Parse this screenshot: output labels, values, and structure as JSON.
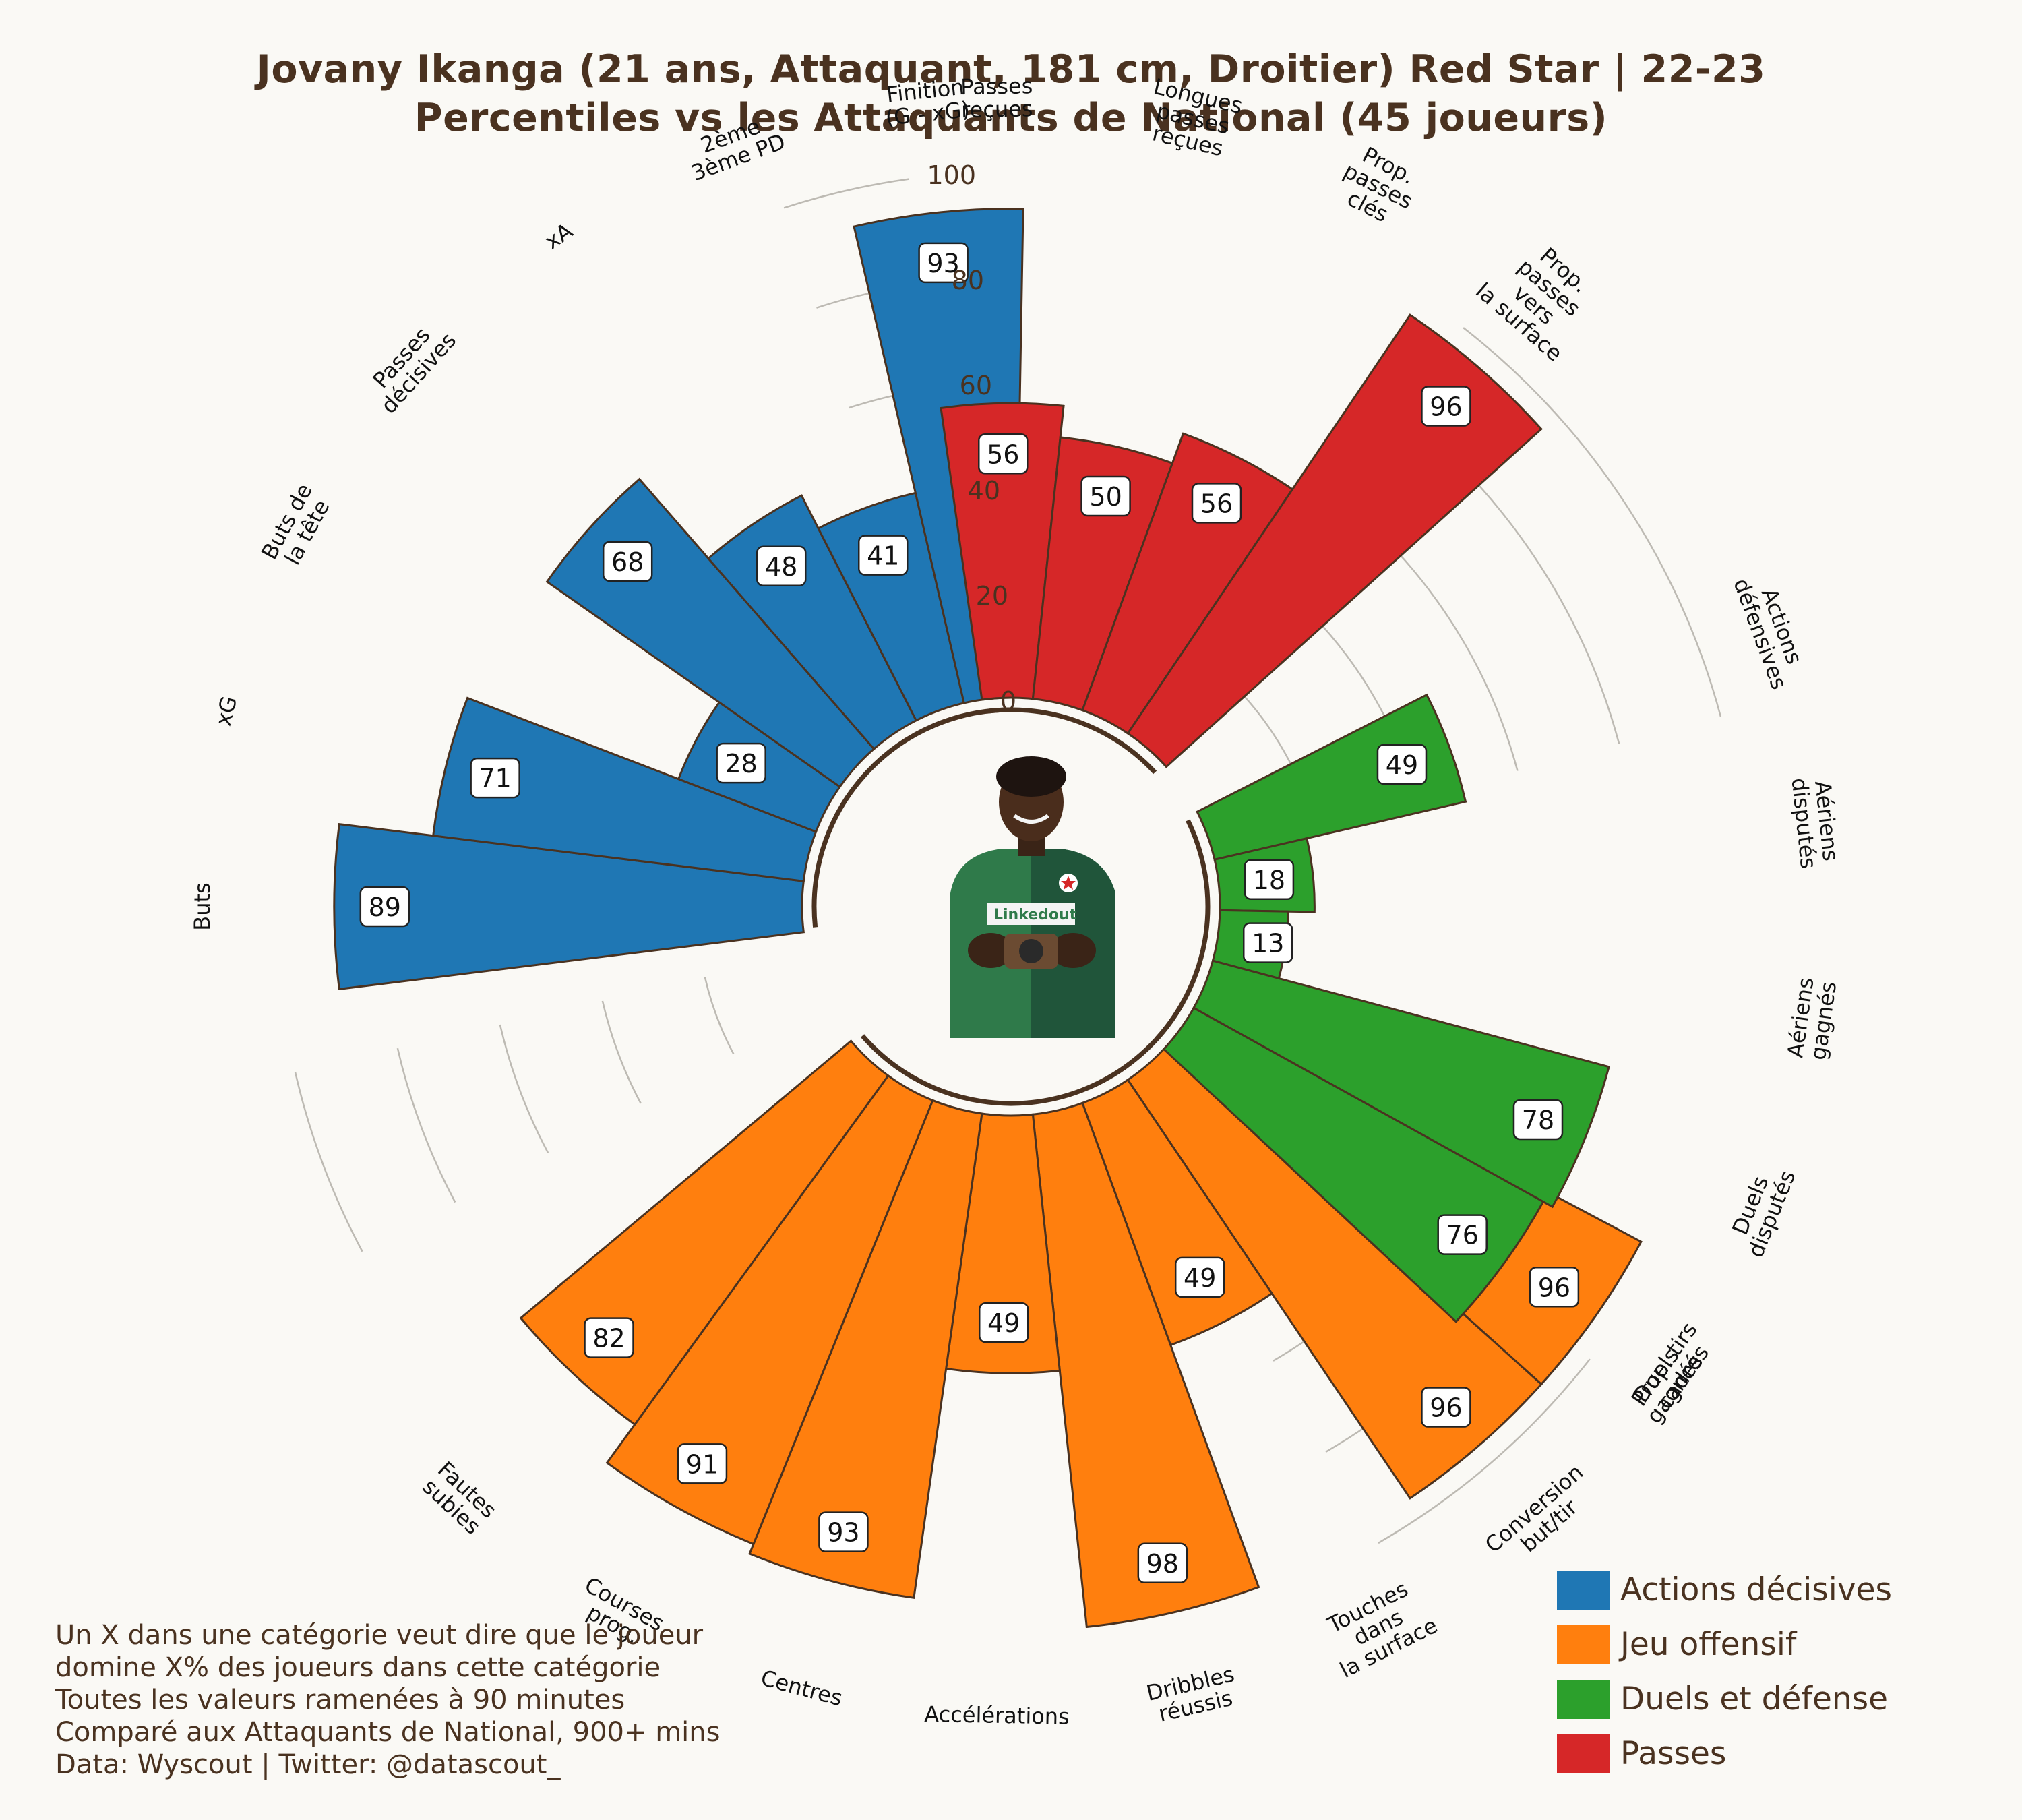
{
  "title_line1": "Jovany Ikanga (21 ans, Attaquant, 181 cm, Droitier) Red Star | 22-23",
  "title_line2": "Percentiles vs les Attaquants de National (45 joueurs)",
  "footnote": [
    "Un X dans une catégorie veut dire que le joueur",
    "domine X% des joueurs dans cette catégorie",
    "Toutes les valeurs ramenées à 90 minutes",
    "Comparé aux Attaquants de National, 900+ mins",
    "Data: Wyscout | Twitter: @datascout_"
  ],
  "legend": [
    {
      "label": "Actions décisives",
      "color": "#1f77b4"
    },
    {
      "label": "Jeu offensif",
      "color": "#ff7f0e"
    },
    {
      "label": "Duels et défense",
      "color": "#2ca02c"
    },
    {
      "label": "Passes",
      "color": "#d62728"
    }
  ],
  "photo": {
    "name": "player-photo",
    "jersey_text": "Linkedout"
  },
  "chart_data": {
    "type": "polar-bar",
    "r_ticks": [
      "0",
      "20",
      "40",
      "60",
      "80",
      "100"
    ],
    "rlim": [
      0,
      100
    ],
    "categories": [
      {
        "name": "Actions décisives",
        "color": "#1f77b4",
        "items": [
          {
            "label": [
              "Buts"
            ],
            "value": 89
          },
          {
            "label": [
              "xG"
            ],
            "value": 71
          },
          {
            "label": [
              "Buts de",
              "la tête"
            ],
            "value": 28
          },
          {
            "label": [
              "Passes",
              "décisives"
            ],
            "value": 68
          },
          {
            "label": [
              "xA"
            ],
            "value": 48
          },
          {
            "label": [
              "2ème",
              "3ème PD"
            ],
            "value": 41
          },
          {
            "label": [
              "Finition",
              "(G - xG)"
            ],
            "value": 93
          }
        ]
      },
      {
        "name": "Jeu offensif",
        "color": "#ff7f0e",
        "items": [
          {
            "label": [
              "Prop. tirs",
              "cadrés"
            ],
            "value": 96
          },
          {
            "label": [
              "Conversion",
              "but/tir"
            ],
            "value": 96
          },
          {
            "label": [
              "Touches",
              "dans",
              "la surface"
            ],
            "value": 49
          },
          {
            "label": [
              "Dribbles",
              "réussis"
            ],
            "value": 98
          },
          {
            "label": [
              "Accélérations"
            ],
            "value": 49
          },
          {
            "label": [
              "Centres"
            ],
            "value": 93
          },
          {
            "label": [
              "Courses",
              "prog."
            ],
            "value": 91
          },
          {
            "label": [
              "Fautes",
              "subies"
            ],
            "value": 82
          }
        ]
      },
      {
        "name": "Duels et défense",
        "color": "#2ca02c",
        "items": [
          {
            "label": [
              "Actions",
              "défensives"
            ],
            "value": 49
          },
          {
            "label": [
              "Aériens",
              "disputés"
            ],
            "value": 18
          },
          {
            "label": [
              "Aériens",
              "gagnés"
            ],
            "value": 13
          },
          {
            "label": [
              "Duels",
              "disputés"
            ],
            "value": 78
          },
          {
            "label": [
              "Duels",
              "gagnés"
            ],
            "value": 76
          }
        ]
      },
      {
        "name": "Passes",
        "color": "#d62728",
        "items": [
          {
            "label": [
              "Passes",
              "reçues"
            ],
            "value": 56
          },
          {
            "label": [
              "Longues",
              "passes",
              "reçues"
            ],
            "value": 50
          },
          {
            "label": [
              "Prop.",
              "passes",
              "clés"
            ],
            "value": 56
          },
          {
            "label": [
              "Prop.",
              "passes",
              "vers",
              "la surface"
            ],
            "value": 96
          }
        ]
      }
    ]
  }
}
